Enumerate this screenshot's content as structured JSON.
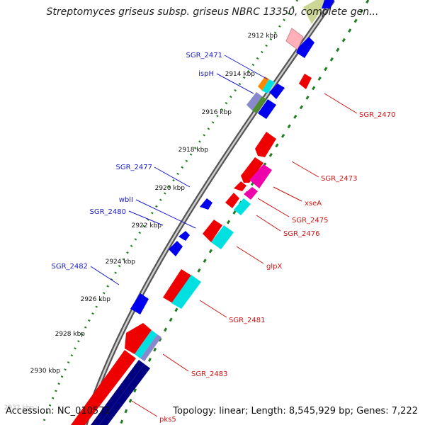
{
  "title": "Streptomyces griseus subsp. griseus NBRC 13350, complete gen...",
  "footer": {
    "accession": "Accession: NC_010572",
    "topology": "Topology: linear; Length: 8,545,929 bp; Genes: 7,222"
  },
  "scale_ticks": [
    "2912 kbp",
    "2914 kbp",
    "2916 kbp",
    "2918 kbp",
    "2920 kbp",
    "2922 kbp",
    "2924 kbp",
    "2926 kbp",
    "2928 kbp",
    "2930 kbp",
    "2932 kbp"
  ],
  "left_labels": [
    "SGR_2471",
    "ispH",
    "SGR_2477",
    "wblI",
    "SGR_2480",
    "SGR_2482"
  ],
  "right_labels": [
    "SGR_2470",
    "SGR_2473",
    "xseA",
    "SGR_2475",
    "SGR_2476",
    "glpX",
    "SGR_2481",
    "SGR_2483",
    "pks5"
  ],
  "colors": {
    "left_label": "#1a1acc",
    "right_label": "#cc1111",
    "dots": "#1e7e1e",
    "backbone": "#888888",
    "gene_red": "#ee0000",
    "gene_blue": "#0000ee",
    "gene_cyan": "#00e0e0",
    "gene_magenta": "#ee00aa",
    "gene_navy": "#000080"
  }
}
